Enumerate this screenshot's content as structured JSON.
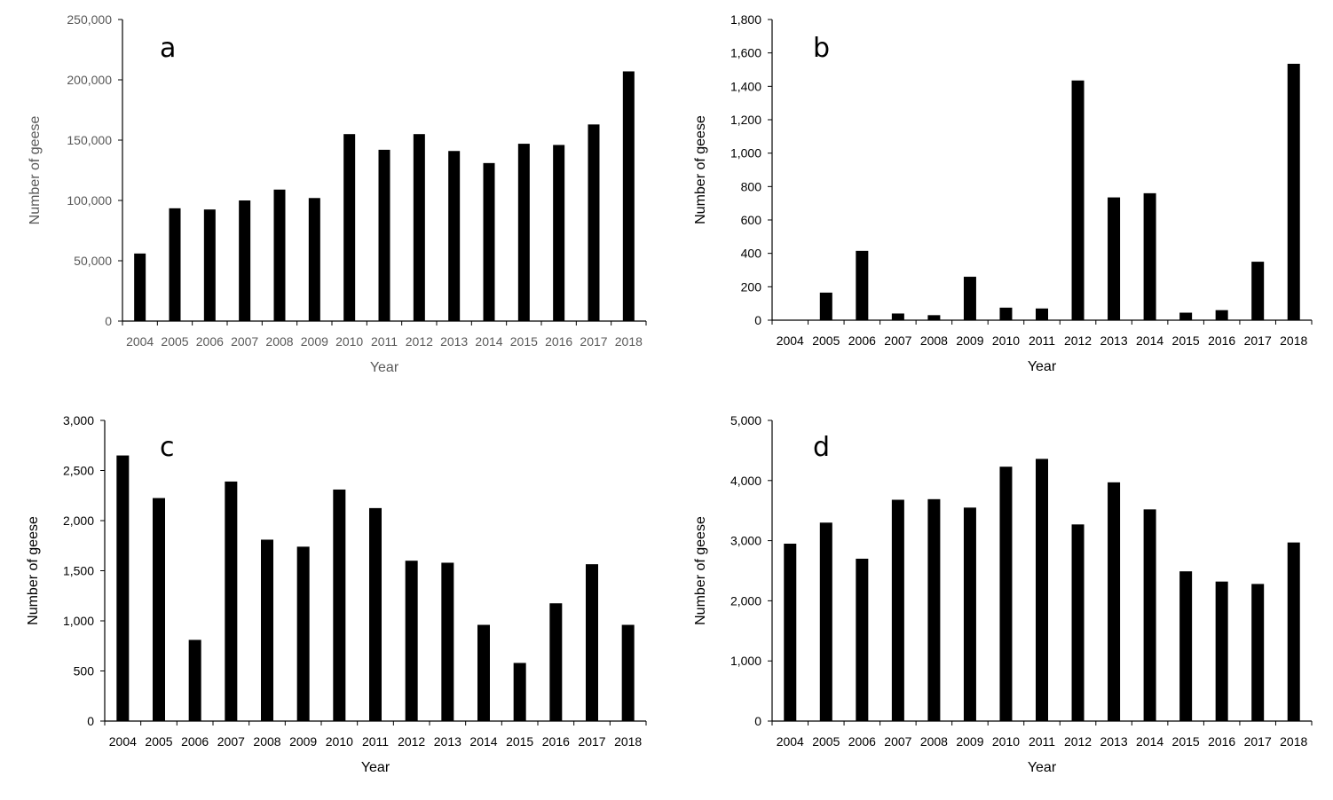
{
  "chart_data": [
    {
      "type": "bar",
      "panel_label": "a",
      "categories": [
        "2004",
        "2005",
        "2006",
        "2007",
        "2008",
        "2009",
        "2010",
        "2011",
        "2012",
        "2013",
        "2014",
        "2015",
        "2016",
        "2017",
        "2018"
      ],
      "values": [
        56000,
        93500,
        92500,
        100000,
        109000,
        102000,
        155000,
        142000,
        155000,
        141000,
        131000,
        147000,
        146000,
        163000,
        207000
      ],
      "xlabel": "Year",
      "ylabel": "Number of geese",
      "ylim": [
        0,
        250000
      ],
      "yticks": [
        "0",
        "50,000",
        "100,000",
        "150,000",
        "200,000",
        "250,000"
      ],
      "text_color": "#595959",
      "bar_color": "#000000"
    },
    {
      "type": "bar",
      "panel_label": "b",
      "categories": [
        "2004",
        "2005",
        "2006",
        "2007",
        "2008",
        "2009",
        "2010",
        "2011",
        "2012",
        "2013",
        "2014",
        "2015",
        "2016",
        "2017",
        "2018"
      ],
      "values": [
        0,
        165,
        415,
        40,
        30,
        260,
        75,
        70,
        1435,
        735,
        760,
        45,
        60,
        350,
        1535
      ],
      "xlabel": "Year",
      "ylabel": "Number of geese",
      "ylim": [
        0,
        1800
      ],
      "yticks": [
        "0",
        "200",
        "400",
        "600",
        "800",
        "1,000",
        "1,200",
        "1,400",
        "1,600",
        "1,800"
      ],
      "text_color": "#000000",
      "bar_color": "#000000"
    },
    {
      "type": "bar",
      "panel_label": "c",
      "categories": [
        "2004",
        "2005",
        "2006",
        "2007",
        "2008",
        "2009",
        "2010",
        "2011",
        "2012",
        "2013",
        "2014",
        "2015",
        "2016",
        "2017",
        "2018"
      ],
      "values": [
        2650,
        2225,
        810,
        2390,
        1810,
        1740,
        2310,
        2125,
        1600,
        1580,
        960,
        580,
        1175,
        1565,
        960
      ],
      "xlabel": "Year",
      "ylabel": "Number of geese",
      "ylim": [
        0,
        3000
      ],
      "yticks": [
        "0",
        "500",
        "1,000",
        "1,500",
        "2,000",
        "2,500",
        "3,000"
      ],
      "text_color": "#000000",
      "bar_color": "#000000"
    },
    {
      "type": "bar",
      "panel_label": "d",
      "categories": [
        "2004",
        "2005",
        "2006",
        "2007",
        "2008",
        "2009",
        "2010",
        "2011",
        "2012",
        "2013",
        "2014",
        "2015",
        "2016",
        "2017",
        "2018"
      ],
      "values": [
        2950,
        3300,
        2700,
        3680,
        3690,
        3550,
        4230,
        4360,
        3270,
        3970,
        3520,
        2490,
        2320,
        2280,
        2970
      ],
      "xlabel": "Year",
      "ylabel": "Number of geese",
      "ylim": [
        0,
        5000
      ],
      "yticks": [
        "0",
        "1,000",
        "2,000",
        "3,000",
        "4,000",
        "5,000"
      ],
      "text_color": "#000000",
      "bar_color": "#000000"
    }
  ]
}
